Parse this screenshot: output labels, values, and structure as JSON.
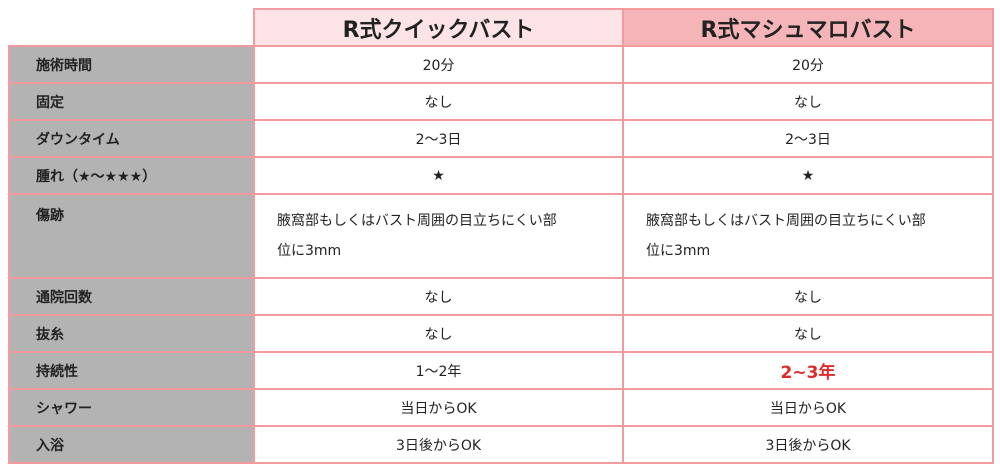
{
  "headers": [
    "R式クイックバスト",
    "R式マシュマロバスト"
  ],
  "rows": [
    {
      "label": "施術時間",
      "a": "20分",
      "b": "20分"
    },
    {
      "label": "固定",
      "a": "なし",
      "b": "なし"
    },
    {
      "label": "ダウンタイム",
      "a": "2〜3日",
      "b": "2〜3日"
    },
    {
      "label": "腫れ（★〜★★★）",
      "a": "★",
      "b": "★"
    },
    {
      "label": "傷跡",
      "a": "腋窩部もしくはバスト周囲の目立ちにくい部位に3mm",
      "b": "腋窩部もしくはバスト周囲の目立ちにくい部位に3mm"
    },
    {
      "label": "通院回数",
      "a": "なし",
      "b": "なし"
    },
    {
      "label": "抜糸",
      "a": "なし",
      "b": "なし"
    },
    {
      "label": "持続性",
      "a": "1〜2年",
      "b": "2~3年"
    },
    {
      "label": "シャワー",
      "a": "当日からOK",
      "b": "当日からOK"
    },
    {
      "label": "入浴",
      "a": "3日後からOK",
      "b": "3日後からOK"
    }
  ],
  "colors": {
    "border": "#f29a9e",
    "header1": "#fce3e5",
    "header2": "#f5b4b7",
    "label_bg": "#b3b3b3",
    "highlight": "#e02a2a"
  }
}
